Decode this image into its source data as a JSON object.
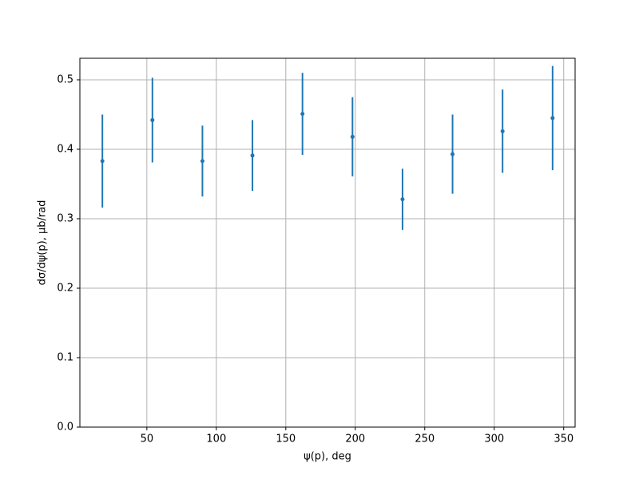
{
  "chart_data": {
    "type": "errorbar",
    "xlabel": "ψ(p), deg",
    "ylabel": "dσ/dψ(p), μb/rad",
    "x": [
      18,
      54,
      90,
      126,
      162,
      198,
      234,
      270,
      306,
      342
    ],
    "series": [
      {
        "color": "#1f77b4",
        "values": [
          0.383,
          0.442,
          0.383,
          0.391,
          0.451,
          0.418,
          0.328,
          0.393,
          0.426,
          0.445
        ],
        "errors": [
          0.067,
          0.061,
          0.051,
          0.051,
          0.059,
          0.057,
          0.044,
          0.057,
          0.06,
          0.075
        ]
      }
    ],
    "xlim": [
      1.8,
      358.2
    ],
    "ylim": [
      0,
      0.531
    ],
    "xticks": [
      50,
      100,
      150,
      200,
      250,
      300,
      350
    ],
    "yticks": [
      {
        "value": 0,
        "label": "0.0"
      },
      0.1,
      0.2,
      0.3,
      0.4,
      0.5
    ],
    "grid": true
  }
}
